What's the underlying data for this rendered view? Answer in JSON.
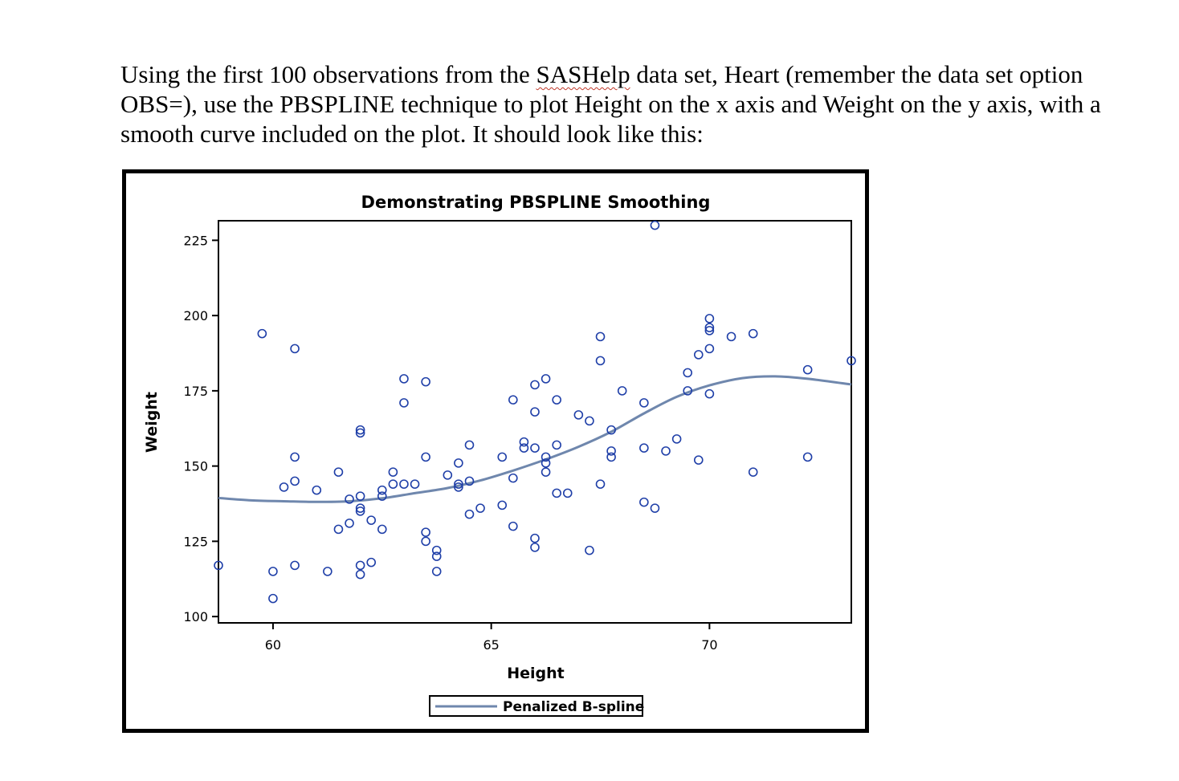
{
  "instructions": {
    "line1_a": "Using the first 100 observations from the ",
    "line1_spell": "SASHelp",
    "line1_b": " data set, Heart (remember the data set option",
    "line2": "OBS=), use the PBSPLINE technique to plot Height on the x axis and Weight on the y axis, with a",
    "line3": "smooth curve included on the plot. It should look like this:"
  },
  "colors": {
    "marker": "#1f3fa8",
    "curve": "#6f87ad",
    "frame": "#000000"
  },
  "chart_data": {
    "type": "scatter",
    "title": "Demonstrating PBSPLINE Smoothing",
    "xlabel": "Height",
    "ylabel": "Weight",
    "xlim": [
      58.75,
      73.25
    ],
    "ylim": [
      97.9,
      231.5
    ],
    "xticks": [
      60,
      65,
      70
    ],
    "xtick_labels": [
      "60",
      "65",
      "70"
    ],
    "yticks": [
      100,
      125,
      150,
      175,
      200,
      225
    ],
    "ytick_labels": [
      "100",
      "125",
      "150",
      "175",
      "200",
      "225"
    ],
    "grid": false,
    "legend_position": "bottom-center",
    "series": [
      {
        "name": "",
        "kind": "scatter",
        "marker": "open-circle",
        "points": [
          [
            58.75,
            117
          ],
          [
            59.75,
            194
          ],
          [
            60,
            115
          ],
          [
            60,
            106
          ],
          [
            60.25,
            143
          ],
          [
            60.5,
            145
          ],
          [
            60.5,
            153
          ],
          [
            60.5,
            189
          ],
          [
            60.5,
            117
          ],
          [
            61,
            142
          ],
          [
            61.25,
            115
          ],
          [
            61.5,
            148
          ],
          [
            61.5,
            129
          ],
          [
            61.75,
            131
          ],
          [
            61.75,
            139
          ],
          [
            62,
            140
          ],
          [
            62,
            136
          ],
          [
            62,
            135
          ],
          [
            62,
            162
          ],
          [
            62,
            161
          ],
          [
            62,
            117
          ],
          [
            62,
            114
          ],
          [
            62.25,
            118
          ],
          [
            62.25,
            132
          ],
          [
            62.5,
            129
          ],
          [
            62.5,
            140
          ],
          [
            62.5,
            142
          ],
          [
            62.75,
            148
          ],
          [
            62.75,
            144
          ],
          [
            63,
            144
          ],
          [
            63,
            171
          ],
          [
            63,
            179
          ],
          [
            63.25,
            144
          ],
          [
            63.5,
            153
          ],
          [
            63.5,
            125
          ],
          [
            63.5,
            128
          ],
          [
            63.5,
            178
          ],
          [
            63.75,
            115
          ],
          [
            63.75,
            120
          ],
          [
            63.75,
            122
          ],
          [
            64,
            147
          ],
          [
            64.25,
            151
          ],
          [
            64.25,
            143
          ],
          [
            64.25,
            144
          ],
          [
            64.5,
            145
          ],
          [
            64.5,
            134
          ],
          [
            64.5,
            157
          ],
          [
            64.75,
            136
          ],
          [
            65.25,
            153
          ],
          [
            65.25,
            137
          ],
          [
            65.5,
            130
          ],
          [
            65.5,
            146
          ],
          [
            65.5,
            172
          ],
          [
            65.75,
            158
          ],
          [
            65.75,
            156
          ],
          [
            66,
            156
          ],
          [
            66,
            168
          ],
          [
            66,
            177
          ],
          [
            66,
            126
          ],
          [
            66,
            123
          ],
          [
            66.25,
            179
          ],
          [
            66.25,
            153
          ],
          [
            66.25,
            151
          ],
          [
            66.25,
            148
          ],
          [
            66.5,
            157
          ],
          [
            66.5,
            172
          ],
          [
            66.5,
            141
          ],
          [
            66.75,
            141
          ],
          [
            67,
            167
          ],
          [
            67.25,
            165
          ],
          [
            67.25,
            122
          ],
          [
            67.5,
            144
          ],
          [
            67.5,
            193
          ],
          [
            67.5,
            185
          ],
          [
            67.75,
            162
          ],
          [
            67.75,
            155
          ],
          [
            67.75,
            153
          ],
          [
            68,
            175
          ],
          [
            68.5,
            171
          ],
          [
            68.5,
            156
          ],
          [
            68.5,
            138
          ],
          [
            68.75,
            136
          ],
          [
            68.75,
            230
          ],
          [
            69,
            155
          ],
          [
            69.25,
            159
          ],
          [
            69.5,
            181
          ],
          [
            69.5,
            175
          ],
          [
            69.75,
            152
          ],
          [
            69.75,
            187
          ],
          [
            70,
            199
          ],
          [
            70,
            196
          ],
          [
            70,
            195
          ],
          [
            70,
            189
          ],
          [
            70,
            174
          ],
          [
            70.5,
            193
          ],
          [
            71,
            194
          ],
          [
            71,
            148
          ],
          [
            72.25,
            182
          ],
          [
            72.25,
            153
          ],
          [
            73.25,
            185
          ]
        ]
      },
      {
        "name": "Penalized B-spline",
        "kind": "line",
        "points": [
          [
            58.75,
            139.4
          ],
          [
            59.5,
            138.6
          ],
          [
            60.25,
            138.3
          ],
          [
            61,
            138.1
          ],
          [
            61.75,
            138.3
          ],
          [
            62.5,
            139.3
          ],
          [
            63.25,
            141.0
          ],
          [
            64,
            142.7
          ],
          [
            64.75,
            145.2
          ],
          [
            65.5,
            148.5
          ],
          [
            66.25,
            152.2
          ],
          [
            67,
            156.4
          ],
          [
            67.75,
            161.4
          ],
          [
            68.5,
            167.5
          ],
          [
            69.25,
            173.0
          ],
          [
            70,
            176.8
          ],
          [
            70.75,
            179.2
          ],
          [
            71.5,
            179.8
          ],
          [
            72.25,
            179.0
          ],
          [
            73.25,
            177.1
          ]
        ]
      }
    ]
  }
}
